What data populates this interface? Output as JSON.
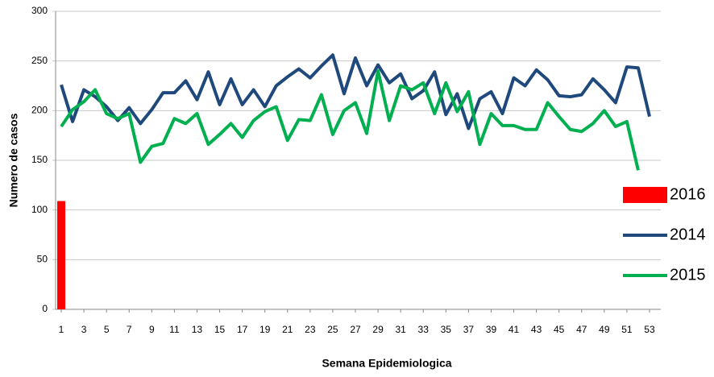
{
  "chart_data": {
    "type": "line",
    "x_label": "Semana Epidemiologica",
    "y_label": "Numero de casos",
    "xlim": [
      0.5,
      53.5
    ],
    "xticks": [
      1,
      3,
      5,
      7,
      9,
      11,
      13,
      15,
      17,
      19,
      21,
      23,
      25,
      27,
      29,
      31,
      33,
      35,
      37,
      39,
      41,
      43,
      45,
      47,
      49,
      51,
      53
    ],
    "ylim": [
      0,
      300
    ],
    "yticks": [
      0,
      50,
      100,
      150,
      200,
      250,
      300
    ],
    "grid": true,
    "legend": "right",
    "series": [
      {
        "name": "2016",
        "type": "bar",
        "color": "#ff0000",
        "x": [
          1
        ],
        "values": [
          109
        ]
      },
      {
        "name": "2014",
        "type": "line",
        "color": "#1f497d",
        "x": [
          1,
          2,
          3,
          4,
          5,
          6,
          7,
          8,
          9,
          10,
          11,
          12,
          13,
          14,
          15,
          16,
          17,
          18,
          19,
          20,
          21,
          22,
          23,
          24,
          25,
          26,
          27,
          28,
          29,
          30,
          31,
          32,
          33,
          34,
          35,
          36,
          37,
          38,
          39,
          40,
          41,
          42,
          43,
          44,
          45,
          46,
          47,
          48,
          49,
          50,
          51,
          52,
          53
        ],
        "values": [
          226,
          189,
          221,
          214,
          204,
          190,
          203,
          187,
          201,
          218,
          218,
          230,
          211,
          239,
          206,
          232,
          206,
          221,
          204,
          225,
          234,
          242,
          233,
          245,
          256,
          217,
          253,
          225,
          246,
          228,
          237,
          212,
          220,
          239,
          196,
          217,
          182,
          212,
          219,
          197,
          233,
          225,
          241,
          231,
          215,
          214,
          216,
          232,
          221,
          208,
          244,
          243,
          194
        ]
      },
      {
        "name": "2015",
        "type": "line",
        "color": "#00b050",
        "x": [
          1,
          2,
          3,
          4,
          5,
          6,
          7,
          8,
          9,
          10,
          11,
          12,
          13,
          14,
          15,
          16,
          17,
          18,
          19,
          20,
          21,
          22,
          23,
          24,
          25,
          26,
          27,
          28,
          29,
          30,
          31,
          32,
          33,
          34,
          35,
          36,
          37,
          38,
          39,
          40,
          41,
          42,
          43,
          44,
          45,
          46,
          47,
          48,
          49,
          50,
          51,
          52
        ],
        "values": [
          184,
          201,
          209,
          221,
          197,
          192,
          197,
          148,
          164,
          167,
          192,
          187,
          197,
          166,
          176,
          187,
          173,
          190,
          199,
          204,
          170,
          191,
          190,
          216,
          176,
          200,
          208,
          177,
          240,
          190,
          225,
          221,
          228,
          197,
          228,
          199,
          219,
          166,
          197,
          185,
          185,
          181,
          181,
          208,
          194,
          181,
          179,
          187,
          200,
          184,
          189,
          140
        ]
      }
    ]
  }
}
